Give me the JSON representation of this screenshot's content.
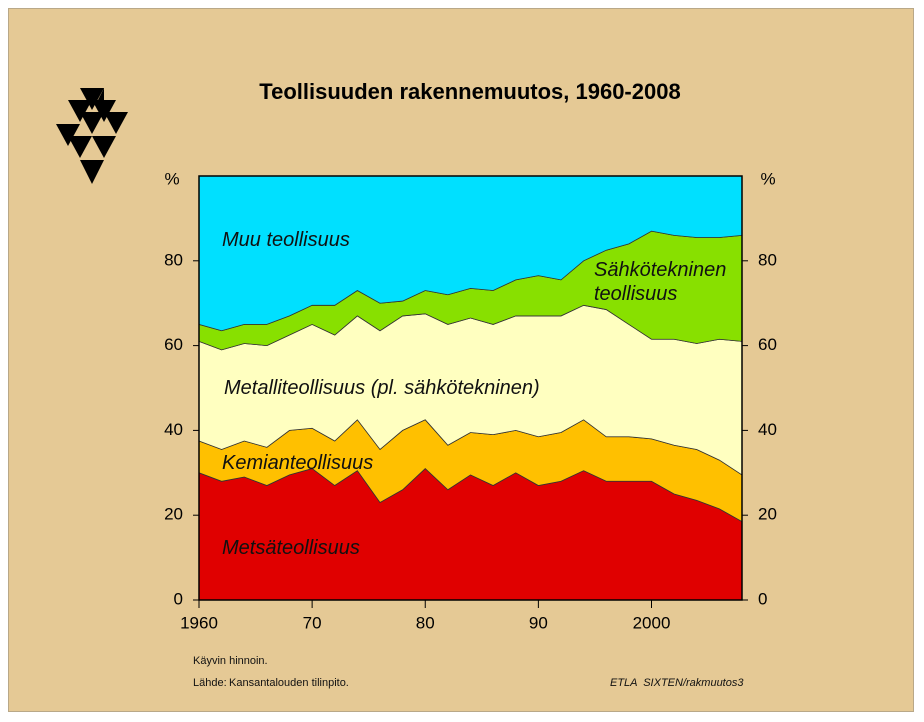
{
  "chart_data": {
    "type": "stacked_area",
    "title": "Teollisuuden rakennemuutos, 1960-2008",
    "ylabel": "%",
    "y2label": "%",
    "x": [
      1960,
      1962,
      1964,
      1966,
      1968,
      1970,
      1972,
      1974,
      1976,
      1978,
      1980,
      1982,
      1984,
      1986,
      1988,
      1990,
      1992,
      1994,
      1996,
      1998,
      2000,
      2002,
      2004,
      2006,
      2008
    ],
    "series": [
      {
        "name": "Metsäteollisuus",
        "color": "#e00000",
        "values": [
          30,
          28,
          29,
          27,
          29.5,
          31,
          27,
          30.5,
          23,
          26,
          31,
          26,
          29.5,
          27,
          30,
          27,
          28,
          30.5,
          28,
          28,
          28,
          25,
          23.5,
          21.5,
          18.5
        ]
      },
      {
        "name": "Kemianteollisuus",
        "color": "#ffc000",
        "values": [
          7.5,
          7.5,
          8.5,
          9,
          10.5,
          9.5,
          10.5,
          12,
          12.5,
          14,
          11.5,
          10.5,
          10,
          12,
          10,
          11.5,
          11.5,
          12,
          10.5,
          10.5,
          10,
          11.5,
          12,
          11.5,
          11
        ]
      },
      {
        "name": "Metalliteollisuus (pl. sähkötekninen)",
        "color": "#ffffc0",
        "values": [
          23.5,
          23.5,
          23,
          24,
          22.5,
          24.5,
          25,
          24.5,
          28,
          27,
          25,
          28.5,
          27,
          26,
          27,
          28.5,
          27.5,
          27,
          30,
          26.5,
          23.5,
          25,
          25,
          28.5,
          31.5
        ]
      },
      {
        "name": "Sähkötekninen teollisuus",
        "color": "#88e000",
        "values": [
          4,
          4.5,
          4.5,
          5,
          4.5,
          4.5,
          7,
          6,
          6.5,
          3.5,
          5.5,
          7,
          7,
          8,
          8.5,
          9.5,
          8.5,
          10.5,
          14,
          19,
          25.5,
          24.5,
          25,
          24,
          25
        ]
      },
      {
        "name": "Muu teollisuus",
        "color": "#00e0ff",
        "values": [
          35,
          36.5,
          35,
          35,
          33,
          30.5,
          30.5,
          27,
          30,
          29.5,
          27,
          28,
          26.5,
          27,
          24.5,
          23.5,
          24.5,
          20,
          17.5,
          16,
          13,
          14,
          14.5,
          14.5,
          14
        ]
      }
    ],
    "xlim": [
      1960,
      2008
    ],
    "xticks": [
      1960,
      {
        "value": 1970,
        "label": "70"
      },
      {
        "value": 1980,
        "label": "80"
      },
      {
        "value": 1990,
        "label": "90"
      },
      2000
    ],
    "ylim": [
      0,
      100
    ],
    "yticks": [
      0,
      20,
      40,
      60,
      80
    ],
    "y2lim": [
      0,
      100
    ],
    "y2ticks": [
      0,
      20,
      40,
      60,
      80
    ]
  },
  "notes": [
    "Käyvin hinnoin.",
    "Lähde:",
    "Kansantalouden tilinpito."
  ],
  "credit": "ETLA  SIXTEN/rakmuutos3"
}
